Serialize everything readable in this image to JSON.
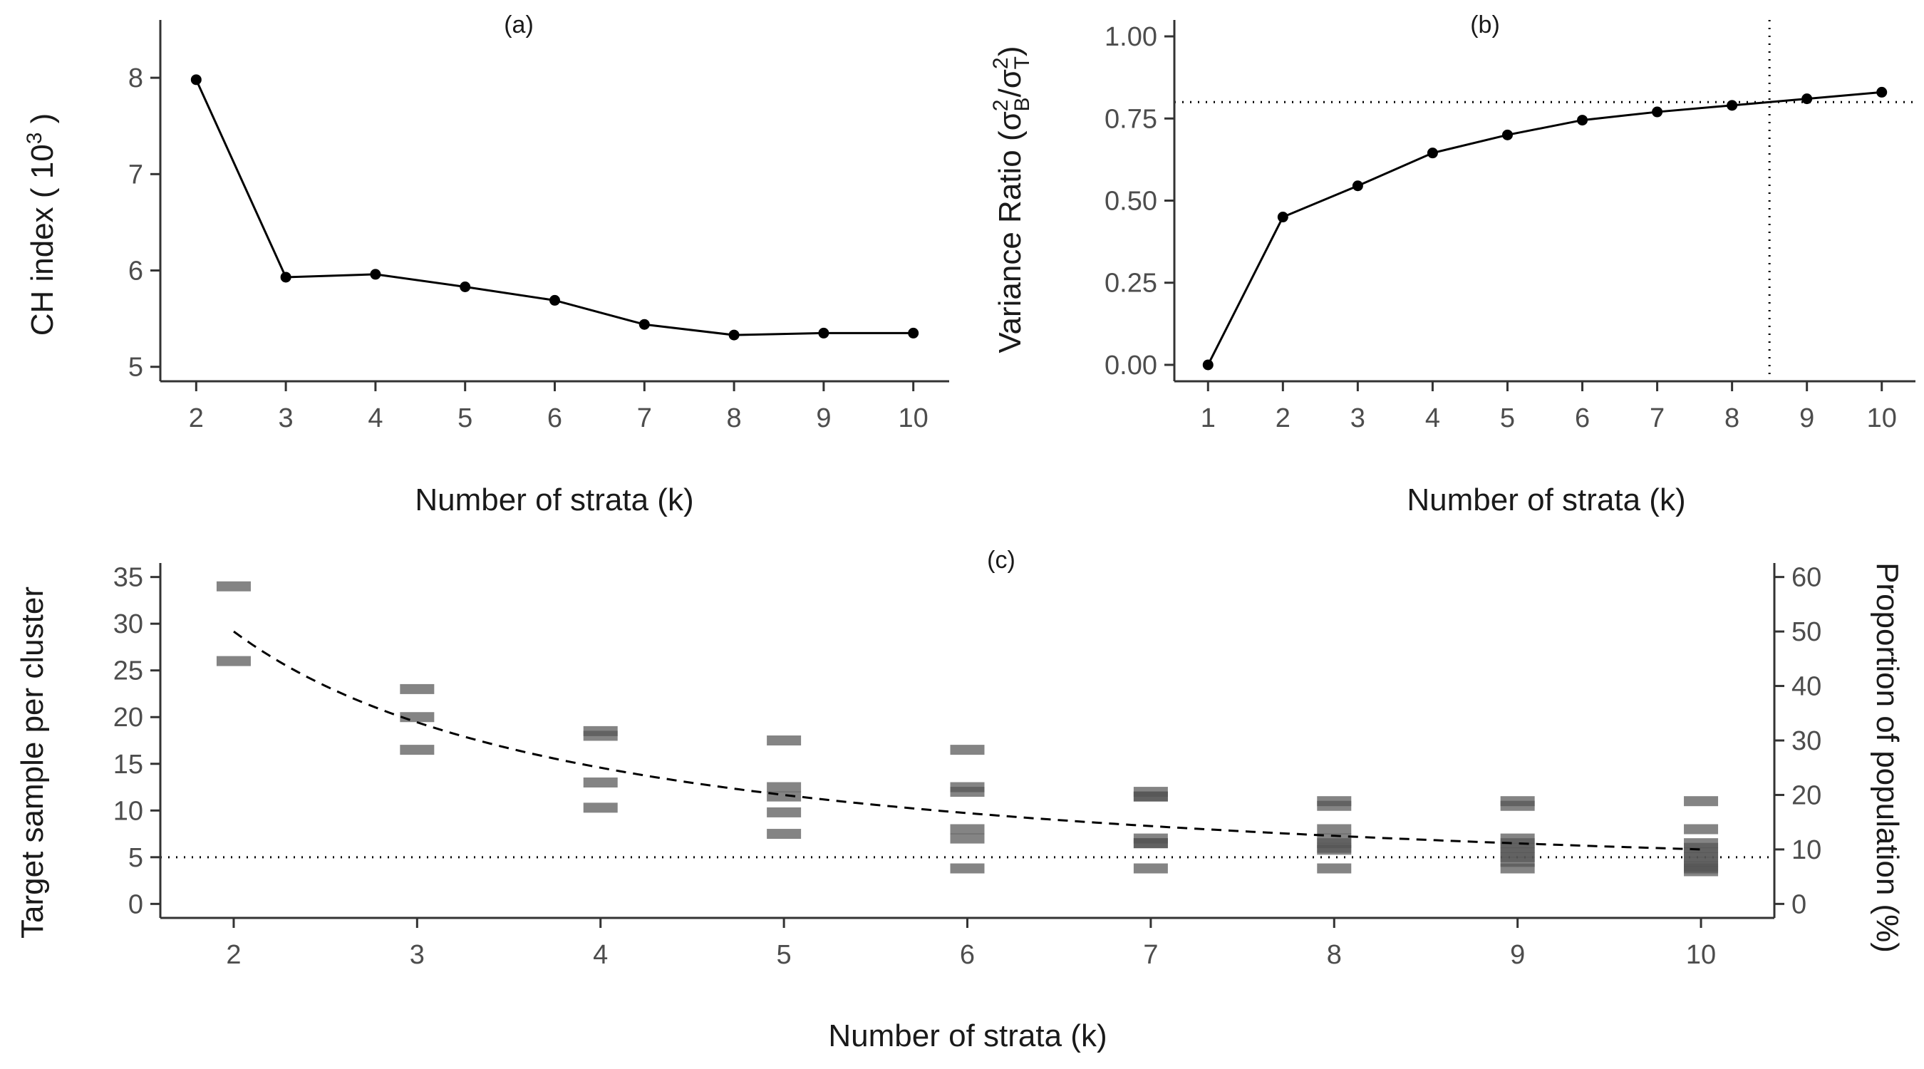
{
  "chart_data": [
    {
      "panel": "(a)",
      "type": "line",
      "xlabel": "Number of strata (k)",
      "ylabel": "CH index ( 10",
      "ylabel_sup": "3",
      "ylabel_end": " )",
      "x": [
        2,
        3,
        4,
        5,
        6,
        7,
        8,
        9,
        10
      ],
      "y": [
        7.98,
        5.93,
        5.96,
        5.83,
        5.69,
        5.44,
        5.33,
        5.35,
        5.35
      ],
      "xlim": [
        1.6,
        10.4
      ],
      "ylim": [
        4.85,
        8.6
      ],
      "xticks": [
        "2",
        "3",
        "4",
        "5",
        "6",
        "7",
        "8",
        "9",
        "10"
      ],
      "yticks": [
        "5",
        "6",
        "7",
        "8"
      ],
      "grid": false,
      "colors": {
        "line": "#000000",
        "point": "#000000"
      }
    },
    {
      "panel": "(b)",
      "type": "line",
      "xlabel": "Number of strata (k)",
      "ylabel": "Variance Ratio (σ²B/σ²T)",
      "x": [
        1,
        2,
        3,
        4,
        5,
        6,
        7,
        8,
        9,
        10
      ],
      "y": [
        0.0,
        0.45,
        0.545,
        0.645,
        0.7,
        0.745,
        0.77,
        0.79,
        0.81,
        0.83
      ],
      "xlim": [
        0.55,
        10.45
      ],
      "ylim": [
        -0.05,
        1.05
      ],
      "xticks": [
        "1",
        "2",
        "3",
        "4",
        "5",
        "6",
        "7",
        "8",
        "9",
        "10"
      ],
      "yticks": [
        "0.00",
        "0.25",
        "0.50",
        "0.75",
        "1.00"
      ],
      "reference_lines": {
        "horizontal": 0.8,
        "vertical": 8.5,
        "style": "dotted"
      },
      "grid": false,
      "colors": {
        "line": "#000000",
        "point": "#000000",
        "reference": "#000000"
      }
    },
    {
      "panel": "(c)",
      "type": "scatter",
      "xlabel": "Number of strata (k)",
      "ylabel": "Target sample per cluster",
      "ylabel_right": "Proportion of population (%)",
      "marker": "horizontal dash, semi-transparent grey (overlaps appear darker)",
      "x_categories": [
        "2",
        "3",
        "4",
        "5",
        "6",
        "7",
        "8",
        "9",
        "10"
      ],
      "points_by_k": {
        "2": [
          34,
          26
        ],
        "3": [
          23,
          20,
          16.5
        ],
        "4": [
          18.5,
          18,
          13,
          10.3
        ],
        "5": [
          17.5,
          12.5,
          11.5,
          9.8,
          7.5
        ],
        "6": [
          16.5,
          12.5,
          12,
          8,
          7,
          3.8
        ],
        "7": [
          12,
          11.5,
          11.5,
          7,
          6.5,
          6.5,
          3.8
        ],
        "8": [
          11,
          10.5,
          8,
          7,
          6.5,
          6,
          5.8,
          3.8
        ],
        "9": [
          11,
          10.5,
          7,
          6.5,
          6,
          5.5,
          5,
          4.5,
          3.8
        ],
        "10": [
          11,
          8,
          6.5,
          6,
          5.5,
          5,
          4.5,
          4,
          3.8,
          3.5
        ]
      },
      "dashed_curve": {
        "x": [
          2,
          3,
          4,
          5,
          6,
          7,
          8,
          9,
          10
        ],
        "y_right_percent": [
          50,
          33.3,
          25,
          20,
          16.7,
          14.3,
          12.5,
          11.1,
          10
        ]
      },
      "reference_line_y": 5,
      "xlim": [
        1.6,
        10.4
      ],
      "ylim": [
        -1.5,
        36.5
      ],
      "ylim_right": [
        -2.57,
        62.57
      ],
      "yticks": [
        "0",
        "5",
        "10",
        "15",
        "20",
        "25",
        "30",
        "35"
      ],
      "yticks_right": [
        "0",
        "10",
        "20",
        "30",
        "40",
        "50",
        "60"
      ],
      "grid": false,
      "colors": {
        "marker": "#555555",
        "curve": "#000000",
        "reference": "#000000"
      }
    }
  ]
}
